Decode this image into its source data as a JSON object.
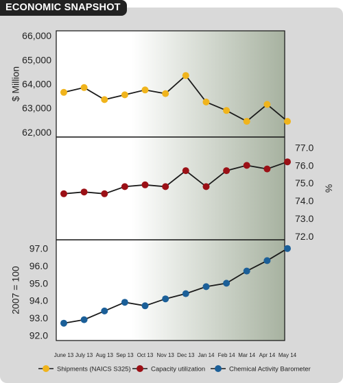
{
  "header": {
    "title": "ECONOMIC SNAPSHOT"
  },
  "colors": {
    "shipments": "#f0b41c",
    "capacity": "#9b1016",
    "barometer": "#1b5f98",
    "panel_gradient_start": "#ffffff",
    "panel_gradient_end": "#a7b2a0",
    "frame": "#d9d9d9",
    "title_tab": "#222222"
  },
  "chart_data": {
    "type": "line",
    "categories": [
      "June 13",
      "July 13",
      "Aug 13",
      "Sep 13",
      "Oct 13",
      "Nov 13",
      "Dec 13",
      "Jan 14",
      "Feb 14",
      "Mar 14",
      "Apr 14",
      "May 14"
    ],
    "panels": [
      {
        "id": "shipments",
        "ylabel": "$ Million",
        "axis_side": "left",
        "ylim": [
          61800,
          66200
        ],
        "ticks": [
          "62,000",
          "63,000",
          "64,000",
          "65,000",
          "66,000"
        ],
        "tick_values": [
          62000,
          63000,
          64000,
          65000,
          66000
        ],
        "series": {
          "name": "Shipments (NAICS S325)",
          "color": "#f0b41c",
          "values": [
            63650,
            63850,
            63350,
            63550,
            63750,
            63600,
            64350,
            63250,
            62900,
            62450,
            63150,
            62450
          ]
        }
      },
      {
        "id": "capacity",
        "ylabel": "%",
        "axis_side": "right",
        "ylim": [
          71.8,
          77.6
        ],
        "ticks": [
          "72.0",
          "73.0",
          "74.0",
          "75.0",
          "76.0",
          "77.0"
        ],
        "tick_values": [
          72,
          73,
          74,
          75,
          76,
          77
        ],
        "series": {
          "name": "Capacity utilization",
          "color": "#9b1016",
          "values": [
            74.4,
            74.5,
            74.4,
            74.8,
            74.9,
            74.8,
            75.7,
            74.8,
            75.7,
            76.0,
            75.8,
            76.2
          ]
        }
      },
      {
        "id": "barometer",
        "ylabel": "2007 = 100",
        "axis_side": "left",
        "ylim": [
          91.7,
          97.5
        ],
        "ticks": [
          "92.0",
          "93.0",
          "94.0",
          "95.0",
          "96.0",
          "97.0"
        ],
        "tick_values": [
          92,
          93,
          94,
          95,
          96,
          97
        ],
        "series": {
          "name": "Chemical Activity Barometer",
          "color": "#1b5f98",
          "values": [
            92.7,
            92.9,
            93.4,
            93.9,
            93.7,
            94.1,
            94.4,
            94.8,
            95.0,
            95.7,
            96.3,
            97.0
          ]
        }
      }
    ],
    "legend": [
      {
        "name": "Shipments (NAICS S325)",
        "color": "#f0b41c"
      },
      {
        "name": "Capacity utilization",
        "color": "#9b1016"
      },
      {
        "name": "Chemical Activity Barometer",
        "color": "#1b5f98"
      }
    ],
    "legend_position": "bottom",
    "grid": false
  }
}
